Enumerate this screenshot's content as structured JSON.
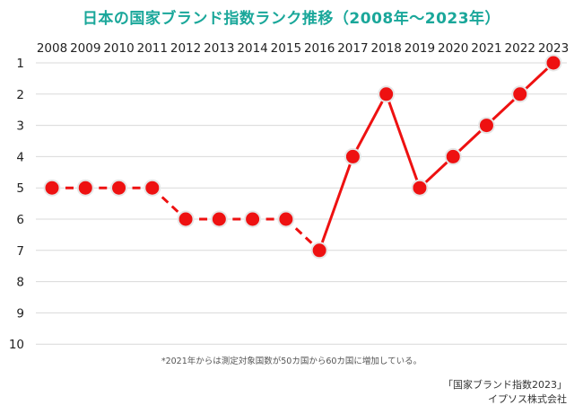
{
  "title": "日本の国家ブランド指数ランク推移（2008年～2023年）",
  "footnote": "*2021年からは測定対象国数が50カ国から60カ国に増加している。",
  "source": {
    "line1": "「国家ブランド指数2023」",
    "line2": "イプソス株式会社"
  },
  "colors": {
    "title": "#1aa79a",
    "series": "#ee1111",
    "grid": "#d9d9d9"
  },
  "chart_data": {
    "type": "line",
    "title": "日本の国家ブランド指数ランク推移（2008年～2023年）",
    "x": [
      "2008",
      "2009",
      "2010",
      "2011",
      "2012",
      "2013",
      "2014",
      "2015",
      "2016",
      "2017",
      "2018",
      "2019",
      "2020",
      "2021",
      "2022",
      "2023"
    ],
    "series": [
      {
        "values": [
          5,
          5,
          5,
          5,
          6,
          6,
          6,
          6,
          7,
          4,
          2,
          5,
          4,
          3,
          2,
          1
        ]
      }
    ],
    "ylim": [
      1,
      10
    ],
    "y_ticks": [
      "1",
      "2",
      "3",
      "4",
      "5",
      "6",
      "7",
      "8",
      "9",
      "10"
    ],
    "y_axis_reversed": true,
    "x_axis_position": "top",
    "line_style_before_2017": "dashed",
    "line_style_from_2016": "solid",
    "grid": true,
    "legend": "none"
  }
}
